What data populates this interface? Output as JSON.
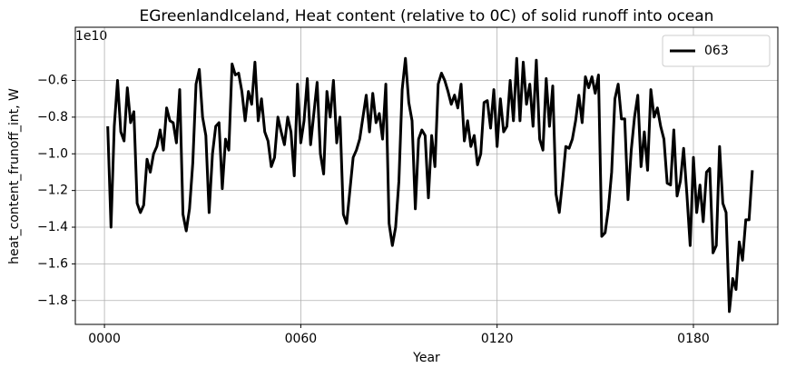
{
  "chart_data": {
    "type": "line",
    "title": "EGreenlandIceland, Heat content (relative to 0C) of solid runoff into ocean",
    "xlabel": "Year",
    "ylabel": "heat_content_frunoff_int, W",
    "y_offset_label": "1e10",
    "x": [
      1,
      2,
      3,
      4,
      5,
      6,
      7,
      8,
      9,
      10,
      11,
      12,
      13,
      14,
      15,
      16,
      17,
      18,
      19,
      20,
      21,
      22,
      23,
      24,
      25,
      26,
      27,
      28,
      29,
      30,
      31,
      32,
      33,
      34,
      35,
      36,
      37,
      38,
      39,
      40,
      41,
      42,
      43,
      44,
      45,
      46,
      47,
      48,
      49,
      50,
      51,
      52,
      53,
      54,
      55,
      56,
      57,
      58,
      59,
      60,
      61,
      62,
      63,
      64,
      65,
      66,
      67,
      68,
      69,
      70,
      71,
      72,
      73,
      74,
      75,
      76,
      77,
      78,
      79,
      80,
      81,
      82,
      83,
      84,
      85,
      86,
      87,
      88,
      89,
      90,
      91,
      92,
      93,
      94,
      95,
      96,
      97,
      98,
      99,
      100,
      101,
      102,
      103,
      104,
      105,
      106,
      107,
      108,
      109,
      110,
      111,
      112,
      113,
      114,
      115,
      116,
      117,
      118,
      119,
      120,
      121,
      122,
      123,
      124,
      125,
      126,
      127,
      128,
      129,
      130,
      131,
      132,
      133,
      134,
      135,
      136,
      137,
      138,
      139,
      140,
      141,
      142,
      143,
      144,
      145,
      146,
      147,
      148,
      149,
      150,
      151,
      152,
      153,
      154,
      155,
      156,
      157,
      158,
      159,
      160,
      161,
      162,
      163,
      164,
      165,
      166,
      167,
      168,
      169,
      170,
      171,
      172,
      173,
      174,
      175,
      176,
      177,
      178,
      179,
      180,
      181,
      182,
      183,
      184,
      185,
      186,
      187,
      188,
      189,
      190,
      191,
      192,
      193,
      194,
      195,
      196,
      197,
      198
    ],
    "series": [
      {
        "name": "063",
        "color": "#000000",
        "values": [
          -0.85,
          -1.4,
          -0.85,
          -0.6,
          -0.88,
          -0.93,
          -0.64,
          -0.83,
          -0.77,
          -1.27,
          -1.32,
          -1.28,
          -1.03,
          -1.1,
          -1.0,
          -0.96,
          -0.87,
          -0.98,
          -0.75,
          -0.82,
          -0.83,
          -0.94,
          -0.65,
          -1.33,
          -1.42,
          -1.3,
          -1.05,
          -0.62,
          -0.54,
          -0.8,
          -0.9,
          -1.32,
          -1.0,
          -0.85,
          -0.83,
          -1.19,
          -0.92,
          -0.98,
          -0.51,
          -0.57,
          -0.56,
          -0.66,
          -0.82,
          -0.66,
          -0.73,
          -0.5,
          -0.82,
          -0.7,
          -0.88,
          -0.93,
          -1.07,
          -1.02,
          -0.8,
          -0.88,
          -0.95,
          -0.8,
          -0.88,
          -1.12,
          -0.62,
          -0.94,
          -0.82,
          -0.59,
          -0.95,
          -0.78,
          -0.61,
          -1.0,
          -1.11,
          -0.66,
          -0.8,
          -0.6,
          -0.94,
          -0.8,
          -1.33,
          -1.38,
          -1.2,
          -1.02,
          -0.98,
          -0.92,
          -0.8,
          -0.68,
          -0.88,
          -0.67,
          -0.83,
          -0.78,
          -0.92,
          -0.62,
          -1.38,
          -1.5,
          -1.4,
          -1.15,
          -0.65,
          -0.48,
          -0.72,
          -0.82,
          -1.3,
          -0.92,
          -0.87,
          -0.9,
          -1.24,
          -0.9,
          -1.07,
          -0.62,
          -0.56,
          -0.6,
          -0.66,
          -0.73,
          -0.68,
          -0.75,
          -0.62,
          -0.93,
          -0.82,
          -0.96,
          -0.9,
          -1.06,
          -1.0,
          -0.72,
          -0.71,
          -0.86,
          -0.65,
          -0.96,
          -0.7,
          -0.88,
          -0.85,
          -0.6,
          -0.82,
          -0.48,
          -0.82,
          -0.5,
          -0.73,
          -0.62,
          -0.85,
          -0.49,
          -0.92,
          -0.98,
          -0.59,
          -0.85,
          -0.63,
          -1.22,
          -1.32,
          -1.15,
          -0.96,
          -0.97,
          -0.92,
          -0.82,
          -0.68,
          -0.83,
          -0.58,
          -0.64,
          -0.58,
          -0.67,
          -0.57,
          -1.45,
          -1.43,
          -1.3,
          -1.1,
          -0.7,
          -0.62,
          -0.81,
          -0.81,
          -1.25,
          -0.98,
          -0.8,
          -0.68,
          -1.07,
          -0.88,
          -1.09,
          -0.65,
          -0.8,
          -0.75,
          -0.85,
          -0.92,
          -1.16,
          -1.17,
          -0.87,
          -1.23,
          -1.15,
          -0.97,
          -1.22,
          -1.5,
          -1.02,
          -1.32,
          -1.17,
          -1.37,
          -1.1,
          -1.08,
          -1.54,
          -1.5,
          -0.96,
          -1.27,
          -1.32,
          -1.86,
          -1.68,
          -1.74,
          -1.48,
          -1.58,
          -1.36,
          -1.36,
          -1.09
        ]
      }
    ],
    "xlim": [
      -8.9,
      205.8
    ],
    "ylim": [
      -1.93,
      -0.31
    ],
    "xticks": [
      {
        "value": 0,
        "label": "0000"
      },
      {
        "value": 60,
        "label": "0060"
      },
      {
        "value": 120,
        "label": "0120"
      },
      {
        "value": 180,
        "label": "0180"
      }
    ],
    "yticks": [
      {
        "value": -1.8,
        "label": "−1.8"
      },
      {
        "value": -1.6,
        "label": "−1.6"
      },
      {
        "value": -1.4,
        "label": "−1.4"
      },
      {
        "value": -1.2,
        "label": "−1.2"
      },
      {
        "value": -1.0,
        "label": "−1.0"
      },
      {
        "value": -0.8,
        "label": "−0.8"
      },
      {
        "value": -0.6,
        "label": "−0.6"
      }
    ],
    "grid": true,
    "legend": "upper right"
  }
}
